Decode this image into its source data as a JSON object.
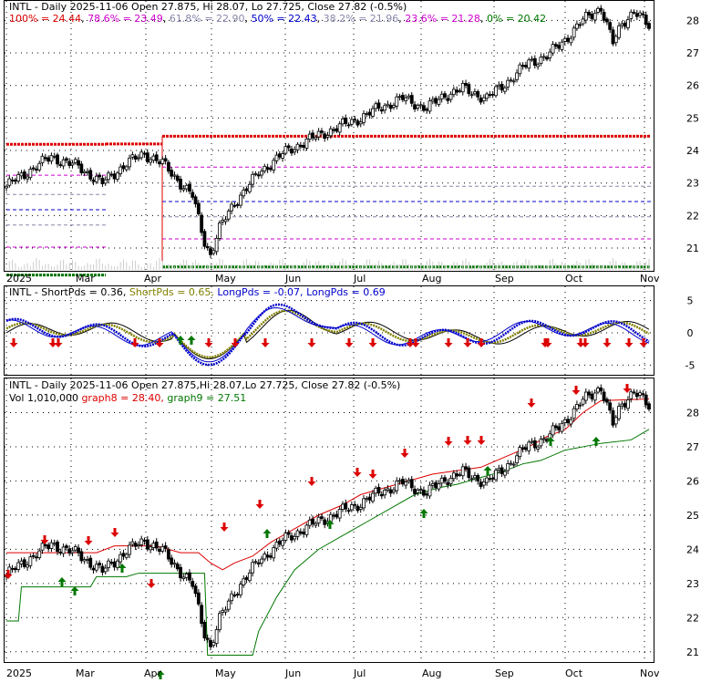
{
  "colors": {
    "red": "#dd0000",
    "green": "#007700",
    "blue": "#0000cc",
    "olive": "#808000",
    "fib_100": "#dd0000",
    "fib_786": "#cc00cc",
    "fib_618": "#8888aa",
    "fib_50": "#0000cc",
    "fib_382": "#8888aa",
    "fib_236": "#cc00cc",
    "fib_0": "#007700",
    "grid": "#000000",
    "candle": "#000000"
  },
  "chart_data": [
    {
      "type": "candlestick",
      "title_ticker": "INTL",
      "title_rest": " - Daily 2025-11-06 Open 27.875, Hi 28.07, Lo 27.725, Close 27.82 (-0.5%)",
      "fib_legend": [
        {
          "text": "100% = 24.44",
          "color_key": "fib_100"
        },
        {
          "text": "78.6% = 23.49",
          "color_key": "fib_786"
        },
        {
          "text": "61.8% = 22.90",
          "color_key": "fib_618"
        },
        {
          "text": "50% = 22.43",
          "color_key": "fib_50"
        },
        {
          "text": "38.2% = 21.96",
          "color_key": "fib_382"
        },
        {
          "text": "23.6% = 21.28",
          "color_key": "fib_236"
        },
        {
          "text": "0% = 20.42",
          "color_key": "fib_0"
        }
      ],
      "fib_levels": [
        {
          "pct": "100%",
          "value": 24.44
        },
        {
          "pct": "78.6%",
          "value": 23.49
        },
        {
          "pct": "61.8%",
          "value": 22.9
        },
        {
          "pct": "50%",
          "value": 22.43
        },
        {
          "pct": "38.2%",
          "value": 21.96
        },
        {
          "pct": "23.6%",
          "value": 21.28
        },
        {
          "pct": "0%",
          "value": 20.42
        }
      ],
      "x_labels": [
        "2025",
        "Mar",
        "Apr",
        "May",
        "Jun",
        "Jul",
        "Aug",
        "Sep",
        "Oct",
        "Nov"
      ],
      "y_ticks": [
        21,
        22,
        23,
        24,
        25,
        26,
        27,
        28
      ],
      "ylim": [
        20.3,
        28.6
      ],
      "grid": "dotted"
    },
    {
      "type": "line",
      "title_ticker": "INTL",
      "legend": [
        {
          "text": " - ShortPds = 0.36, ",
          "color_key": "grid"
        },
        {
          "text": "ShortPds = 0.65, ",
          "color_key": "olive"
        },
        {
          "text": "LongPds = -0.07, ",
          "color_key": "blue"
        },
        {
          "text": "LongPds = 0.69",
          "color_key": "blue"
        }
      ],
      "y_ticks": [
        -5,
        0,
        5
      ],
      "ylim": [
        -6.5,
        7.2
      ],
      "grid": "dotted"
    },
    {
      "type": "candlestick",
      "title_ticker": "INTL",
      "title_rest": " - Daily 2025-11-06 Open 27.875,Hi 28.07,Lo 27.725, Close 27.82 (-0.5%)",
      "vol_text": "Vol 1,010,000 ",
      "graph8_text": "graph8 = 28.40, ",
      "graph9_text": "graph9 = 27.51",
      "y_ticks": [
        21,
        22,
        23,
        24,
        25,
        26,
        27,
        28
      ],
      "ylim": [
        20.7,
        29.0
      ],
      "x_labels": [
        "2025",
        "Mar",
        "Apr",
        "May",
        "Jun",
        "Jul",
        "Aug",
        "Sep",
        "Oct",
        "Nov"
      ],
      "grid": "dotted"
    }
  ]
}
